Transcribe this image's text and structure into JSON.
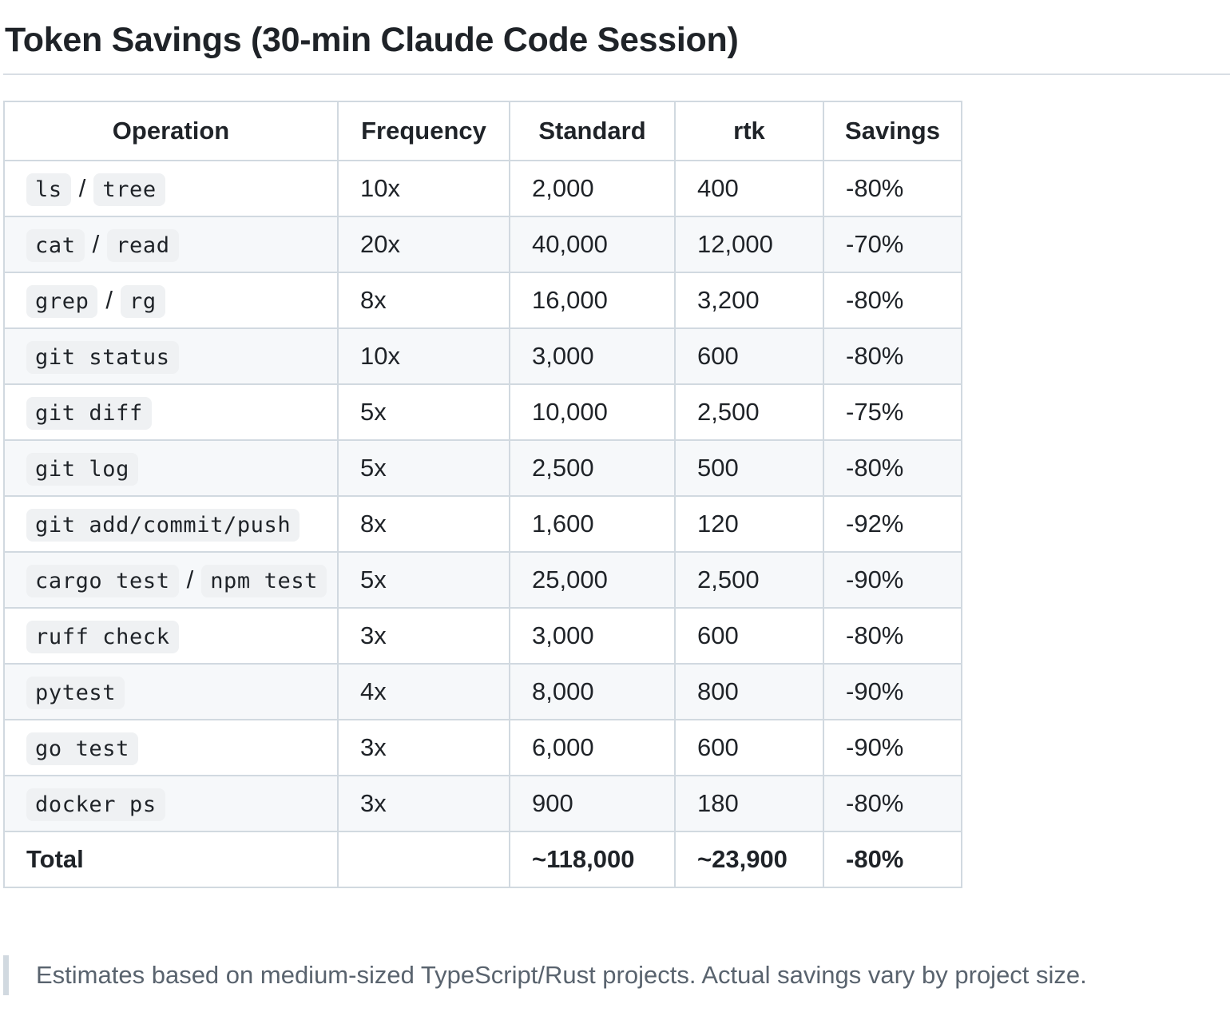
{
  "title": "Token Savings (30-min Claude Code Session)",
  "table": {
    "headers": [
      "Operation",
      "Frequency",
      "Standard",
      "rtk",
      "Savings"
    ],
    "rows": [
      {
        "operation": [
          "ls",
          "tree"
        ],
        "frequency": "10x",
        "standard": "2,000",
        "rtk": "400",
        "savings": "-80%"
      },
      {
        "operation": [
          "cat",
          "read"
        ],
        "frequency": "20x",
        "standard": "40,000",
        "rtk": "12,000",
        "savings": "-70%"
      },
      {
        "operation": [
          "grep",
          "rg"
        ],
        "frequency": "8x",
        "standard": "16,000",
        "rtk": "3,200",
        "savings": "-80%"
      },
      {
        "operation": [
          "git status"
        ],
        "frequency": "10x",
        "standard": "3,000",
        "rtk": "600",
        "savings": "-80%"
      },
      {
        "operation": [
          "git diff"
        ],
        "frequency": "5x",
        "standard": "10,000",
        "rtk": "2,500",
        "savings": "-75%"
      },
      {
        "operation": [
          "git log"
        ],
        "frequency": "5x",
        "standard": "2,500",
        "rtk": "500",
        "savings": "-80%"
      },
      {
        "operation": [
          "git add/commit/push"
        ],
        "frequency": "8x",
        "standard": "1,600",
        "rtk": "120",
        "savings": "-92%"
      },
      {
        "operation": [
          "cargo test",
          "npm test"
        ],
        "frequency": "5x",
        "standard": "25,000",
        "rtk": "2,500",
        "savings": "-90%"
      },
      {
        "operation": [
          "ruff check"
        ],
        "frequency": "3x",
        "standard": "3,000",
        "rtk": "600",
        "savings": "-80%"
      },
      {
        "operation": [
          "pytest"
        ],
        "frequency": "4x",
        "standard": "8,000",
        "rtk": "800",
        "savings": "-90%"
      },
      {
        "operation": [
          "go test"
        ],
        "frequency": "3x",
        "standard": "6,000",
        "rtk": "600",
        "savings": "-90%"
      },
      {
        "operation": [
          "docker ps"
        ],
        "frequency": "3x",
        "standard": "900",
        "rtk": "180",
        "savings": "-80%"
      }
    ],
    "separator": "/",
    "total": {
      "label": "Total",
      "frequency": "",
      "standard": "~118,000",
      "rtk": "~23,900",
      "savings": "-80%"
    }
  },
  "note": "Estimates based on medium-sized TypeScript/Rust projects. Actual savings vary by project size.",
  "colors": {
    "text": "#1f2328",
    "border": "#d1d9e0",
    "row_stripe": "#f6f8fa",
    "code_bg": "#eff1f3",
    "muted_text": "#59636e"
  }
}
